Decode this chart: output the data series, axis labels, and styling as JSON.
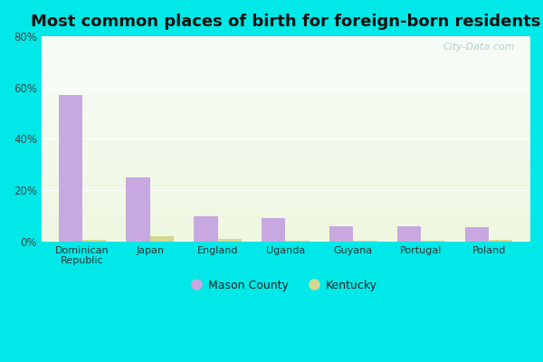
{
  "title": "Most common places of birth for foreign-born residents",
  "categories": [
    "Dominican\nRepublic",
    "Japan",
    "England",
    "Uganda",
    "Guyana",
    "Portugal",
    "Poland"
  ],
  "mason_county": [
    57,
    25,
    10,
    9,
    6,
    6,
    5.5
  ],
  "kentucky": [
    0.5,
    2.0,
    1.0,
    0.3,
    0.2,
    0.2,
    0.5
  ],
  "mason_color": "#c8a8e0",
  "kentucky_color": "#d4d890",
  "outer_bg": "#00e8e8",
  "plot_bg_topleft": [
    0.94,
    0.99,
    0.97
  ],
  "plot_bg_bottomright": [
    0.88,
    0.97,
    0.9
  ],
  "ylim": [
    0,
    80
  ],
  "yticks": [
    0,
    20,
    40,
    60,
    80
  ],
  "ytick_labels": [
    "0%",
    "20%",
    "40%",
    "60%",
    "80%"
  ],
  "title_fontsize": 13,
  "legend_labels": [
    "Mason County",
    "Kentucky"
  ],
  "bar_width": 0.35,
  "watermark": "City-Data.com"
}
